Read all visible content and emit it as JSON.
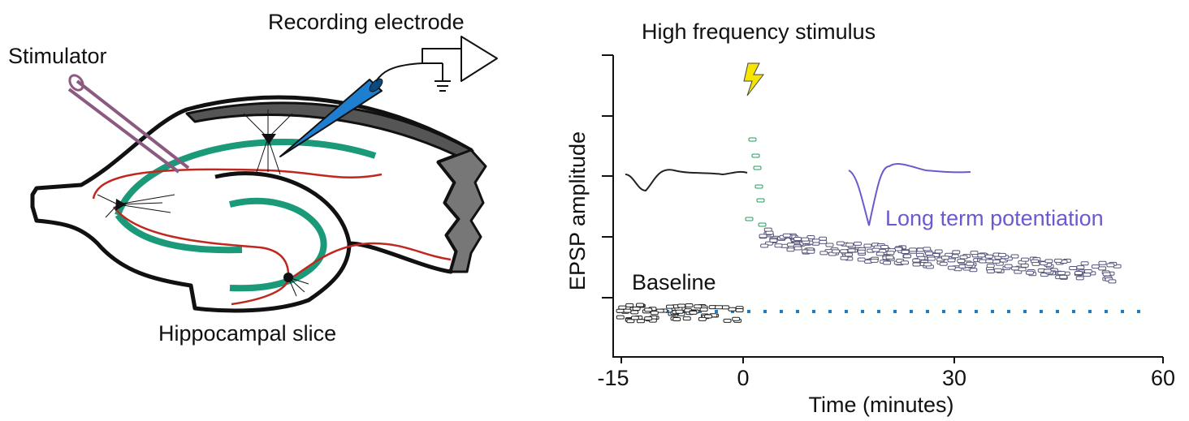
{
  "labels": {
    "stimulator": "Stimulator",
    "recording": "Recording electrode",
    "slice": "Hippocampal slice"
  },
  "plot": {
    "stimulus": "High frequency stimulus",
    "y_label": "EPSP amplitude",
    "x_label": "Time (minutes)",
    "x_ticks": [
      "-15",
      "0",
      "30",
      "60"
    ],
    "baseline": "Baseline",
    "ltp": "Long term potentiation"
  }
}
